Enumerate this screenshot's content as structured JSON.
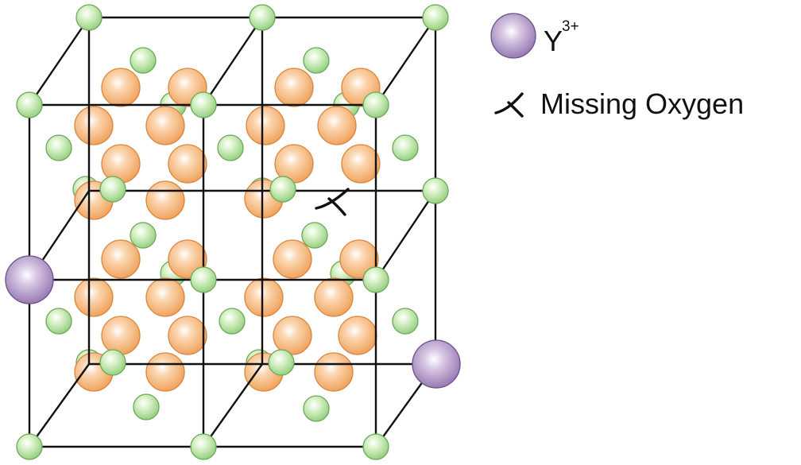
{
  "legend": {
    "items": [
      {
        "symbol": "Y",
        "charge": "3+"
      },
      {
        "label": "Missing Oxygen"
      }
    ]
  },
  "colors": {
    "yttrium": "#9b7cb6",
    "zirconium": "#9dd58a",
    "oxygen": "#f3a45b",
    "edge": "#111111"
  },
  "icons": {
    "yttrium": "yttrium-ion-icon",
    "vacancy": "oxygen-vacancy-icon"
  }
}
